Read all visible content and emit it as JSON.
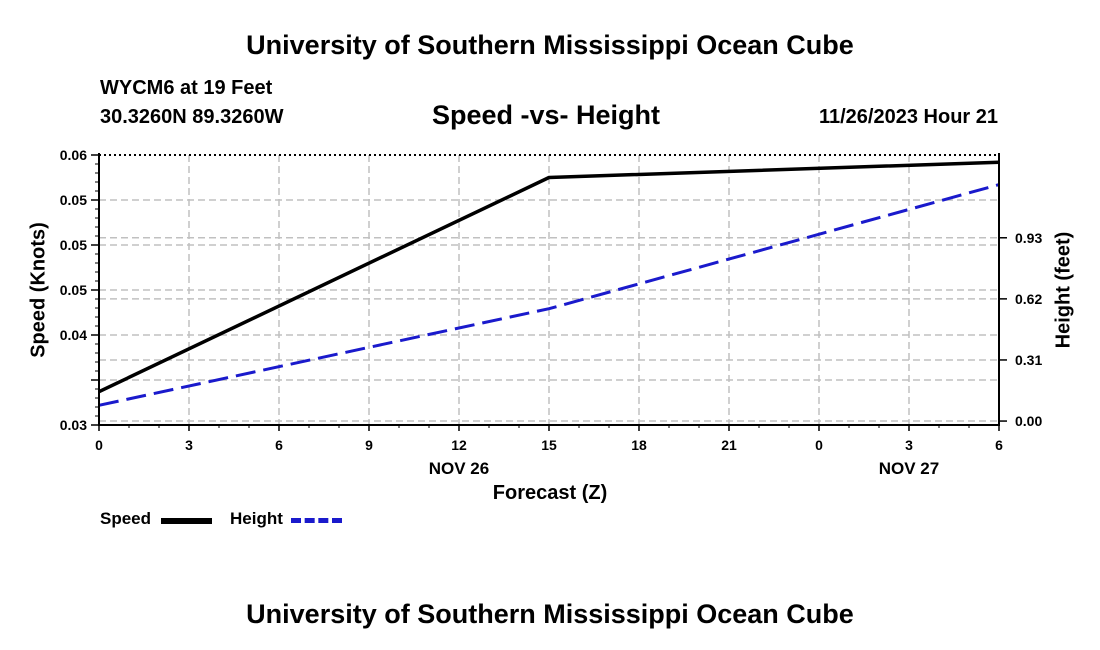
{
  "header": {
    "title": "University of Southern Mississippi Ocean Cube",
    "station": "WYCM6 at 19 Feet",
    "coordinates": "30.3260N  89.3260W",
    "chart_title": "Speed -vs- Height",
    "datestamp": "11/26/2023 Hour 21"
  },
  "footer": {
    "title": "University of Southern Mississippi Ocean Cube"
  },
  "legend": {
    "speed_label": "Speed",
    "height_label": "Height"
  },
  "colors": {
    "speed": "#000000",
    "height": "#1a1acc",
    "grid": "#c0c0c0"
  },
  "chart_data": {
    "type": "line",
    "title": "Speed -vs- Height",
    "xlabel": "Forecast (Z)",
    "ylabel": "Speed (Knots)",
    "y2label": "Height (feet)",
    "x_hours_from_start": [
      0,
      3,
      6,
      9,
      12,
      15,
      18,
      21,
      24,
      27,
      30
    ],
    "x_tick_labels": [
      "0",
      "3",
      "6",
      "9",
      "12",
      "15",
      "18",
      "21",
      "0",
      "3",
      "6"
    ],
    "x_date_labels": [
      {
        "label": "NOV 26",
        "at_hour": 12
      },
      {
        "label": "NOV 27",
        "at_hour": 27
      }
    ],
    "xlim": [
      0,
      30
    ],
    "ylim": [
      0.03,
      0.06
    ],
    "y_tick_values": [
      0.03,
      0.035,
      0.04,
      0.045,
      0.05,
      0.055,
      0.06
    ],
    "y_tick_labels": [
      "0.03",
      "",
      "0.04",
      "0.05",
      "0.05",
      "0.05",
      "0.06"
    ],
    "y2lim": [
      -0.02,
      1.35
    ],
    "y2_tick_values": [
      0.0,
      0.31,
      0.62,
      0.93
    ],
    "y2_tick_labels": [
      "0.00",
      "0.31",
      "0.62",
      "0.93"
    ],
    "series": [
      {
        "name": "Speed",
        "axis": "left",
        "style": "solid",
        "x": [
          0,
          15,
          30
        ],
        "values": [
          0.0337,
          0.0575,
          0.0592
        ]
      },
      {
        "name": "Height",
        "axis": "right",
        "style": "dashed",
        "x": [
          0,
          15,
          30
        ],
        "values": [
          0.08,
          0.57,
          1.2
        ]
      }
    ]
  }
}
